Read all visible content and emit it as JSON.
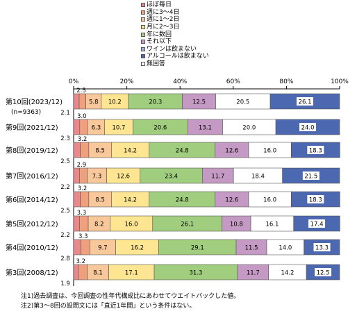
{
  "chart_data": {
    "type": "bar",
    "orientation": "horizontal",
    "stacked": true,
    "x_tick_labels": [
      "0%",
      "20%",
      "40%",
      "60%",
      "80%",
      "100%"
    ],
    "xlim": [
      0,
      100
    ],
    "legend_position": "top",
    "categories": [
      "第10回(2023/12)",
      "第9回(2021/12)",
      "第8回(2019/12)",
      "第7回(2016/12)",
      "第6回(2014/12)",
      "第5回(2012/12)",
      "第4回(2010/12)",
      "第3回(2008/12)"
    ],
    "category_sublabels": [
      "(n=9363)",
      "",
      "",
      "",
      "",
      "",
      "",
      ""
    ],
    "series": [
      {
        "name": "ほぼ毎日",
        "color": "#e88a8a",
        "values": [
          2.1,
          2.3,
          2.5,
          2.2,
          2.5,
          2.2,
          2.8,
          1.9
        ]
      },
      {
        "name": "週に3～4日",
        "color": "#f0a07c",
        "values": [
          2.5,
          3.0,
          3.2,
          2.9,
          3.2,
          3.3,
          3.3,
          3.2
        ]
      },
      {
        "name": "週に1～2日",
        "color": "#f8c89a",
        "values": [
          5.8,
          6.3,
          8.5,
          7.3,
          8.5,
          8.2,
          9.7,
          8.1
        ]
      },
      {
        "name": "月に2～3日",
        "color": "#fde592",
        "values": [
          10.2,
          10.7,
          14.2,
          12.6,
          14.2,
          16.0,
          16.2,
          17.1
        ]
      },
      {
        "name": "年に数回",
        "color": "#a1cd7e",
        "values": [
          20.3,
          20.6,
          24.8,
          23.4,
          24.8,
          26.1,
          29.1,
          31.3
        ]
      },
      {
        "name": "それ以下",
        "color": "#c49ac4",
        "values": [
          12.5,
          13.1,
          12.6,
          11.7,
          12.6,
          10.8,
          11.5,
          11.7
        ]
      },
      {
        "name": "ワインは飲まない",
        "color": "#a7acd6",
        "values": [
          0,
          0,
          0,
          0,
          0,
          0,
          0,
          0
        ]
      },
      {
        "name": "アルコールは飲まない",
        "color": "#4b68b0",
        "values": [
          0,
          0,
          0,
          0,
          0,
          0,
          0,
          0
        ]
      },
      {
        "name": "無回答",
        "color": "#ffffff",
        "values": [
          20.5,
          20.0,
          16.0,
          18.4,
          16.0,
          16.1,
          14.0,
          14.2
        ]
      }
    ],
    "label_values": [
      [
        2.1,
        2.5,
        5.8,
        10.2,
        20.3,
        12.5,
        20.5,
        26.1
      ],
      [
        2.3,
        3.0,
        6.3,
        10.7,
        20.6,
        13.1,
        20.0,
        24.0
      ],
      [
        2.5,
        3.2,
        8.5,
        14.2,
        24.8,
        12.6,
        16.0,
        18.3
      ],
      [
        2.2,
        2.9,
        7.3,
        12.6,
        23.4,
        11.7,
        18.4,
        21.5
      ],
      [
        2.5,
        3.2,
        8.5,
        14.2,
        24.8,
        12.6,
        16.0,
        18.3
      ],
      [
        2.2,
        3.3,
        8.2,
        16.0,
        26.1,
        10.8,
        16.1,
        17.4
      ],
      [
        2.8,
        3.3,
        9.7,
        16.2,
        29.1,
        11.5,
        14.0,
        13.3
      ],
      [
        1.9,
        3.2,
        8.1,
        17.1,
        31.3,
        11.7,
        14.2,
        12.5
      ]
    ]
  },
  "notes": [
    "注1)過去調査は、今回調査の性年代構成比にあわせてウエイトバックした値。",
    "注2)第3～8回の設問文には「直近1年間」という条件はない。"
  ]
}
